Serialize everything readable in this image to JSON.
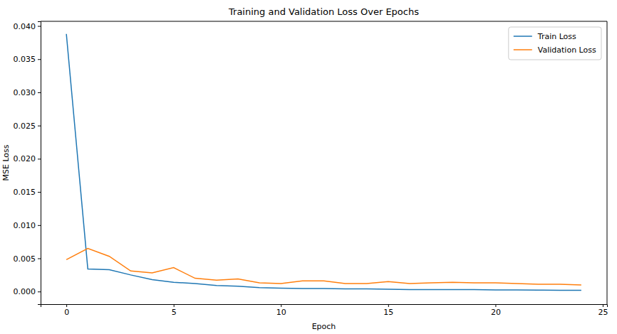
{
  "chart_data": {
    "type": "line",
    "title": "Training and Validation Loss Over Epochs",
    "x_label": "Epoch",
    "y_label": "MSE Loss",
    "x": [
      0,
      1,
      2,
      3,
      4,
      5,
      6,
      7,
      8,
      9,
      10,
      11,
      12,
      13,
      14,
      15,
      16,
      17,
      18,
      19,
      20,
      21,
      22,
      23,
      24
    ],
    "series": [
      {
        "name": "Train Loss",
        "color": "#1f77b4",
        "values": [
          0.0388,
          0.0034,
          0.0033,
          0.0025,
          0.0018,
          0.0014,
          0.0012,
          0.0009,
          0.0008,
          0.0006,
          0.0005,
          0.00045,
          0.00045,
          0.0004,
          0.0004,
          0.00035,
          0.0003,
          0.0003,
          0.0003,
          0.0003,
          0.00025,
          0.00025,
          0.00022,
          0.0002,
          0.0002
        ]
      },
      {
        "name": "Validation Loss",
        "color": "#ff7f0e",
        "values": [
          0.0048,
          0.0065,
          0.0053,
          0.0031,
          0.0028,
          0.0036,
          0.002,
          0.0017,
          0.0019,
          0.0013,
          0.0012,
          0.0016,
          0.0016,
          0.0012,
          0.0012,
          0.0015,
          0.0012,
          0.0013,
          0.0014,
          0.0013,
          0.0013,
          0.0012,
          0.0011,
          0.0011,
          0.001
        ]
      }
    ],
    "xlim": [
      -1.2,
      25.2
    ],
    "xticks": [
      0,
      5,
      10,
      15,
      20,
      25
    ],
    "ylim": [
      -0.0019,
      0.0407
    ],
    "yticks": [
      {
        "value": 0,
        "label": "0.000"
      },
      {
        "value": 0.005,
        "label": "0.005"
      },
      {
        "value": 0.01,
        "label": "0.010"
      },
      {
        "value": 0.015,
        "label": "0.015"
      },
      {
        "value": 0.02,
        "label": "0.020"
      },
      {
        "value": 0.025,
        "label": "0.025"
      },
      {
        "value": 0.03,
        "label": "0.030"
      },
      {
        "value": 0.035,
        "label": "0.035"
      },
      {
        "value": 0.04,
        "label": "0.040"
      }
    ],
    "grid": false,
    "legend": "upper right"
  }
}
